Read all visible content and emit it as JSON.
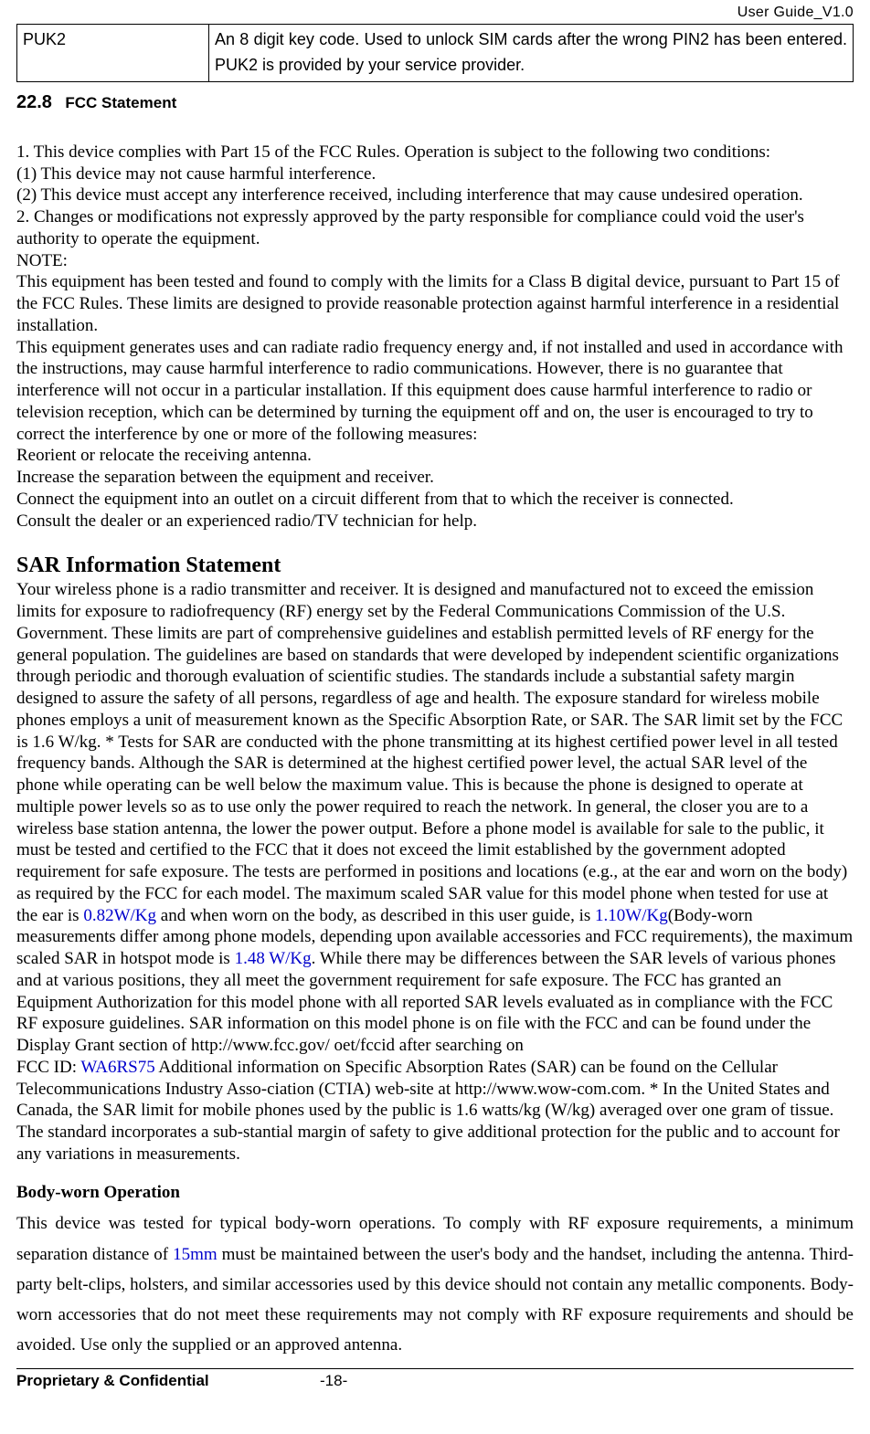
{
  "header": {
    "doc_id": "User  Guide_V1.0"
  },
  "puk_table": {
    "left": "PUK2",
    "right": "An 8 digit key code. Used to unlock SIM cards after the wrong PIN2 has been entered. PUK2 is provided by your service provider."
  },
  "section": {
    "number": "22.8",
    "title": "FCC Statement"
  },
  "fcc": {
    "l1": "1. This device complies with Part 15 of the FCC Rules. Operation is subject to the following two conditions:",
    "l2": "(1) This device may not cause harmful interference.",
    "l3": "(2) This device must accept any interference received, including interference that may cause undesired operation.",
    "l4": "2. Changes or modifications not expressly approved by the party responsible for compliance could void the user's authority to operate the equipment.",
    "l5": "NOTE:",
    "l6": "This equipment has been tested and found to comply with the limits for a Class B digital device, pursuant to Part 15 of the FCC Rules. These limits are designed to provide reasonable protection against harmful interference in a residential installation.",
    "l7": "This equipment generates uses and can radiate radio frequency energy and, if not installed and used in accordance with the instructions, may cause harmful interference to radio communications. However, there is no guarantee that interference will not occur in a particular installation. If this equipment does cause harmful interference to radio or television reception, which can be determined by turning the equipment off and on, the user is encouraged to try to correct the interference by one or more of the following measures:",
    "l8": "Reorient or relocate the receiving antenna.",
    "l9": "Increase the separation between the equipment and receiver.",
    "l10": "Connect the equipment into an outlet on a circuit different from that to which the receiver is connected.",
    "l11": "Consult the dealer or an experienced radio/TV technician for help."
  },
  "sar": {
    "heading": "SAR Information Statement",
    "p1a": "Your wireless phone is a radio transmitter and receiver. It is designed and manufactured not to exceed the emission limits for exposure to radiofrequency (RF) energy set by the Federal Communications Commission of the U.S. Government. These limits are part of comprehensive guidelines and establish permitted levels of RF energy for the general population. The guidelines are based on standards that were developed by independent scientific organizations through periodic and thorough evaluation of scientific studies. The standards include a substantial safety margin designed to assure the safety of all persons, regardless of age and health. The exposure standard for wireless mobile phones employs a unit of measurement known as the Specific Absorption Rate, or SAR. The SAR limit set by the FCC is 1.6 W/kg. * Tests for SAR are conducted with the phone transmitting at its highest certified power level in all tested frequency bands. Although the SAR is determined at the highest certified power level, the actual SAR level of the phone while operating can be well below the maximum value. This is because the phone is designed to operate at multiple power levels so as to use only the power required to reach the network. In general, the closer you are to a wireless base station antenna, the lower the power output. Before a phone model is available for sale to the public, it must be tested and certified to the FCC that it does not exceed the limit established by the government adopted requirement for safe exposure. The tests are performed in positions and locations (e.g., at the ear and worn on the body) as required by the FCC for each model. The maximum scaled SAR value for this model phone when tested for use at the ear is ",
    "v1": "0.82W/Kg",
    "p1b": " and when worn on the body, as described in this user guide, is ",
    "v2": "1.10W/Kg",
    "p1c": "(Body-worn measurements differ among phone models, depending upon available accessories and FCC requirements), the maximum scaled SAR in hotspot mode is ",
    "v3": "1.48 W/Kg",
    "p1d": ". While there may be differences between the SAR levels of various phones and at various positions, they all meet the government requirement for safe exposure. The FCC has granted an Equipment Authorization for this model phone with all reported SAR levels evaluated as in compliance with the FCC RF exposure guidelines. SAR information on this model phone is on file with the FCC and can be found under the Display Grant section of http://www.fcc.gov/ oet/fccid after searching on",
    "p2a": "FCC ID: ",
    "fccid": "WA6RS75",
    "p2b": " Additional information on Specific Absorption Rates (SAR) can be found on the Cellular Telecommunications Industry Asso-ciation (CTIA) web-site at http://www.wow-com.com. * In the United States and Canada, the SAR limit for mobile phones used by the public is 1.6 watts/kg (W/kg) averaged over one gram of tissue. The standard incorporates a sub-stantial margin of safety to give additional protection for the public and to account for any variations in measurements."
  },
  "bwo": {
    "heading": "Body-worn Operation",
    "t1": "This device was tested for typical body-worn operations. To comply with RF exposure requirements, a minimum separation distance of ",
    "dist": "15mm",
    "t2": " must be maintained between the user's body and the handset, including the antenna. Third-party belt-clips, holsters, and similar accessories used by this device should not contain any metallic components. Body-worn accessories that do not meet these requirements may not comply with RF exposure requirements and should be avoided. Use only the supplied or an approved antenna."
  },
  "footer": {
    "left": "Proprietary & Confidential",
    "center": "-18-"
  },
  "colors": {
    "link_blue": "#0000cc",
    "text": "#000000",
    "bg": "#ffffff"
  }
}
